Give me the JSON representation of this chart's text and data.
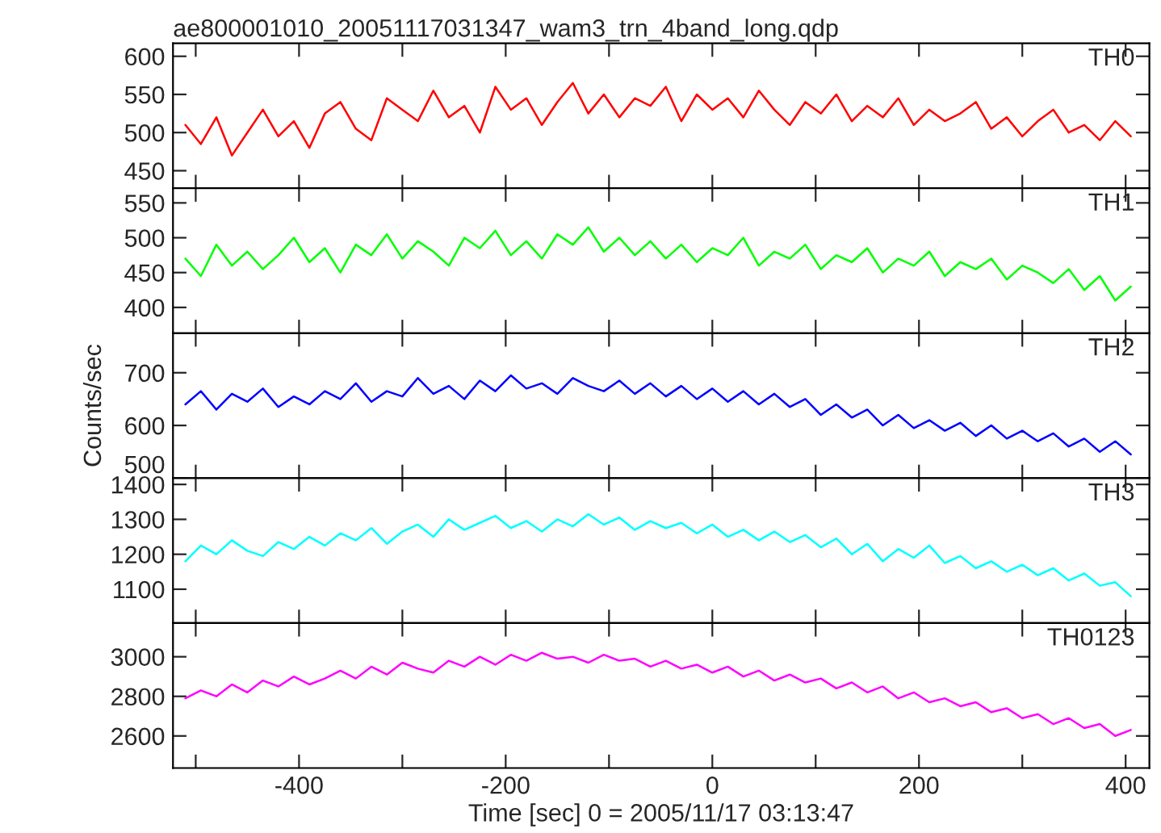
{
  "chart_data": [
    {
      "type": "line",
      "title": "ae800001010_20051117031347_wam3_trn_4band_long.qdp",
      "tick_labels": "y",
      "grid": false,
      "x": [
        -510,
        -495,
        -480,
        -465,
        -450,
        -435,
        -420,
        -405,
        -390,
        -375,
        -360,
        -345,
        -330,
        -315,
        -300,
        -285,
        -270,
        -255,
        -240,
        -225,
        -210,
        -195,
        -180,
        -165,
        -150,
        -135,
        -120,
        -105,
        -90,
        -75,
        -60,
        -45,
        -30,
        -15,
        0,
        15,
        30,
        45,
        60,
        75,
        90,
        105,
        120,
        135,
        150,
        165,
        180,
        195,
        210,
        225,
        240,
        255,
        270,
        285,
        300,
        315,
        330,
        345,
        360,
        375,
        390,
        405
      ],
      "xlim": [
        -522,
        423
      ],
      "xticks": [
        {
          "value": -500,
          "label": null
        },
        -400,
        {
          "value": -300,
          "label": null
        },
        -200,
        {
          "value": -100,
          "label": null
        },
        0,
        {
          "value": 100,
          "label": null
        },
        200,
        {
          "value": 300,
          "label": null
        },
        400
      ],
      "ylim": [
        427,
        617
      ],
      "yticks": [
        450,
        500,
        550,
        600
      ],
      "series": [
        {
          "name": "TH0",
          "color": "#ff0000",
          "values": [
            510,
            485,
            520,
            470,
            500,
            530,
            495,
            515,
            480,
            525,
            540,
            505,
            490,
            545,
            530,
            515,
            555,
            520,
            535,
            500,
            560,
            530,
            545,
            510,
            540,
            565,
            525,
            550,
            520,
            545,
            535,
            560,
            515,
            550,
            530,
            545,
            520,
            555,
            530,
            510,
            540,
            525,
            550,
            515,
            535,
            520,
            545,
            510,
            530,
            515,
            525,
            540,
            505,
            520,
            495,
            515,
            530,
            500,
            510,
            490,
            515,
            495
          ]
        }
      ]
    },
    {
      "type": "line",
      "tick_labels": "y",
      "grid": false,
      "x": [
        -510,
        -495,
        -480,
        -465,
        -450,
        -435,
        -420,
        -405,
        -390,
        -375,
        -360,
        -345,
        -330,
        -315,
        -300,
        -285,
        -270,
        -255,
        -240,
        -225,
        -210,
        -195,
        -180,
        -165,
        -150,
        -135,
        -120,
        -105,
        -90,
        -75,
        -60,
        -45,
        -30,
        -15,
        0,
        15,
        30,
        45,
        60,
        75,
        90,
        105,
        120,
        135,
        150,
        165,
        180,
        195,
        210,
        225,
        240,
        255,
        270,
        285,
        300,
        315,
        330,
        345,
        360,
        375,
        390,
        405
      ],
      "xlim": [
        -522,
        423
      ],
      "xticks": [
        {
          "value": -500,
          "label": null
        },
        -400,
        {
          "value": -300,
          "label": null
        },
        -200,
        {
          "value": -100,
          "label": null
        },
        0,
        {
          "value": 100,
          "label": null
        },
        200,
        {
          "value": 300,
          "label": null
        },
        400
      ],
      "ylim": [
        363,
        571
      ],
      "yticks": [
        400,
        450,
        500,
        550
      ],
      "series": [
        {
          "name": "TH1",
          "color": "#00ff00",
          "values": [
            470,
            445,
            490,
            460,
            480,
            455,
            475,
            500,
            465,
            485,
            450,
            490,
            475,
            505,
            470,
            495,
            480,
            460,
            500,
            485,
            510,
            475,
            495,
            470,
            505,
            490,
            515,
            480,
            500,
            475,
            495,
            470,
            490,
            465,
            485,
            475,
            500,
            460,
            480,
            470,
            490,
            455,
            475,
            465,
            485,
            450,
            470,
            460,
            480,
            445,
            465,
            455,
            470,
            440,
            460,
            450,
            435,
            455,
            425,
            445,
            410,
            430
          ]
        }
      ]
    },
    {
      "type": "line",
      "tick_labels": "y",
      "grid": false,
      "ylabel": "Counts/sec",
      "x": [
        -510,
        -495,
        -480,
        -465,
        -450,
        -435,
        -420,
        -405,
        -390,
        -375,
        -360,
        -345,
        -330,
        -315,
        -300,
        -285,
        -270,
        -255,
        -240,
        -225,
        -210,
        -195,
        -180,
        -165,
        -150,
        -135,
        -120,
        -105,
        -90,
        -75,
        -60,
        -45,
        -30,
        -15,
        0,
        15,
        30,
        45,
        60,
        75,
        90,
        105,
        120,
        135,
        150,
        165,
        180,
        195,
        210,
        225,
        240,
        255,
        270,
        285,
        300,
        315,
        330,
        345,
        360,
        375,
        390,
        405
      ],
      "xlim": [
        -522,
        423
      ],
      "xticks": [
        {
          "value": -500,
          "label": null
        },
        -400,
        {
          "value": -300,
          "label": null
        },
        -200,
        {
          "value": -100,
          "label": null
        },
        0,
        {
          "value": 100,
          "label": null
        },
        200,
        {
          "value": 300,
          "label": null
        },
        400
      ],
      "ylim": [
        500,
        775
      ],
      "yticks": [
        500,
        600,
        700
      ],
      "series": [
        {
          "name": "TH2",
          "color": "#0000ff",
          "values": [
            640,
            665,
            630,
            660,
            645,
            670,
            635,
            655,
            640,
            665,
            650,
            680,
            645,
            665,
            655,
            690,
            660,
            675,
            650,
            685,
            665,
            695,
            670,
            680,
            660,
            690,
            675,
            665,
            685,
            660,
            680,
            655,
            675,
            650,
            670,
            645,
            665,
            640,
            660,
            635,
            650,
            620,
            640,
            615,
            630,
            600,
            620,
            595,
            610,
            590,
            605,
            580,
            600,
            575,
            590,
            570,
            585,
            560,
            575,
            550,
            570,
            545
          ]
        }
      ]
    },
    {
      "type": "line",
      "tick_labels": "y",
      "grid": false,
      "x": [
        -510,
        -495,
        -480,
        -465,
        -450,
        -435,
        -420,
        -405,
        -390,
        -375,
        -360,
        -345,
        -330,
        -315,
        -300,
        -285,
        -270,
        -255,
        -240,
        -225,
        -210,
        -195,
        -180,
        -165,
        -150,
        -135,
        -120,
        -105,
        -90,
        -75,
        -60,
        -45,
        -30,
        -15,
        0,
        15,
        30,
        45,
        60,
        75,
        90,
        105,
        120,
        135,
        150,
        165,
        180,
        195,
        210,
        225,
        240,
        255,
        270,
        285,
        300,
        315,
        330,
        345,
        360,
        375,
        390,
        405
      ],
      "xlim": [
        -522,
        423
      ],
      "xticks": [
        {
          "value": -500,
          "label": null
        },
        -400,
        {
          "value": -300,
          "label": null
        },
        -200,
        {
          "value": -100,
          "label": null
        },
        0,
        {
          "value": 100,
          "label": null
        },
        200,
        {
          "value": 300,
          "label": null
        },
        400
      ],
      "ylim": [
        1003,
        1418
      ],
      "yticks": [
        1100,
        1200,
        1300,
        1400
      ],
      "series": [
        {
          "name": "TH3",
          "color": "#00ffff",
          "values": [
            1180,
            1225,
            1200,
            1240,
            1210,
            1195,
            1235,
            1215,
            1250,
            1225,
            1260,
            1240,
            1275,
            1230,
            1265,
            1285,
            1250,
            1300,
            1270,
            1290,
            1310,
            1275,
            1295,
            1265,
            1300,
            1280,
            1315,
            1285,
            1305,
            1270,
            1295,
            1275,
            1290,
            1260,
            1285,
            1250,
            1270,
            1240,
            1265,
            1235,
            1255,
            1220,
            1245,
            1200,
            1230,
            1180,
            1215,
            1190,
            1225,
            1175,
            1195,
            1160,
            1180,
            1150,
            1170,
            1140,
            1160,
            1125,
            1145,
            1110,
            1120,
            1080
          ]
        }
      ]
    },
    {
      "type": "line",
      "grid": false,
      "xlabel": "Time [sec] 0 = 2005/11/17 03:13:47",
      "x": [
        -510,
        -495,
        -480,
        -465,
        -450,
        -435,
        -420,
        -405,
        -390,
        -375,
        -360,
        -345,
        -330,
        -315,
        -300,
        -285,
        -270,
        -255,
        -240,
        -225,
        -210,
        -195,
        -180,
        -165,
        -150,
        -135,
        -120,
        -105,
        -90,
        -75,
        -60,
        -45,
        -30,
        -15,
        0,
        15,
        30,
        45,
        60,
        75,
        90,
        105,
        120,
        135,
        150,
        165,
        180,
        195,
        210,
        225,
        240,
        255,
        270,
        285,
        300,
        315,
        330,
        345,
        360,
        375,
        390,
        405
      ],
      "xlim": [
        -522,
        423
      ],
      "xticks": [
        {
          "value": -500,
          "label": null
        },
        -400,
        {
          "value": -300,
          "label": null
        },
        -200,
        {
          "value": -100,
          "label": null
        },
        0,
        {
          "value": 100,
          "label": null
        },
        200,
        {
          "value": 300,
          "label": null
        },
        400
      ],
      "ylim": [
        2438,
        3170
      ],
      "yticks": [
        2600,
        2800,
        3000
      ],
      "series": [
        {
          "name": "TH0123",
          "color": "#ff00ff",
          "values": [
            2790,
            2830,
            2800,
            2860,
            2820,
            2880,
            2850,
            2900,
            2860,
            2890,
            2930,
            2890,
            2950,
            2910,
            2970,
            2940,
            2920,
            2980,
            2950,
            3000,
            2960,
            3010,
            2980,
            3020,
            2990,
            3000,
            2970,
            3010,
            2980,
            2990,
            2950,
            2980,
            2940,
            2960,
            2920,
            2950,
            2900,
            2930,
            2880,
            2910,
            2870,
            2890,
            2840,
            2870,
            2820,
            2850,
            2790,
            2820,
            2770,
            2790,
            2750,
            2770,
            2720,
            2740,
            2690,
            2710,
            2660,
            2690,
            2640,
            2660,
            2600,
            2630
          ]
        }
      ]
    }
  ]
}
